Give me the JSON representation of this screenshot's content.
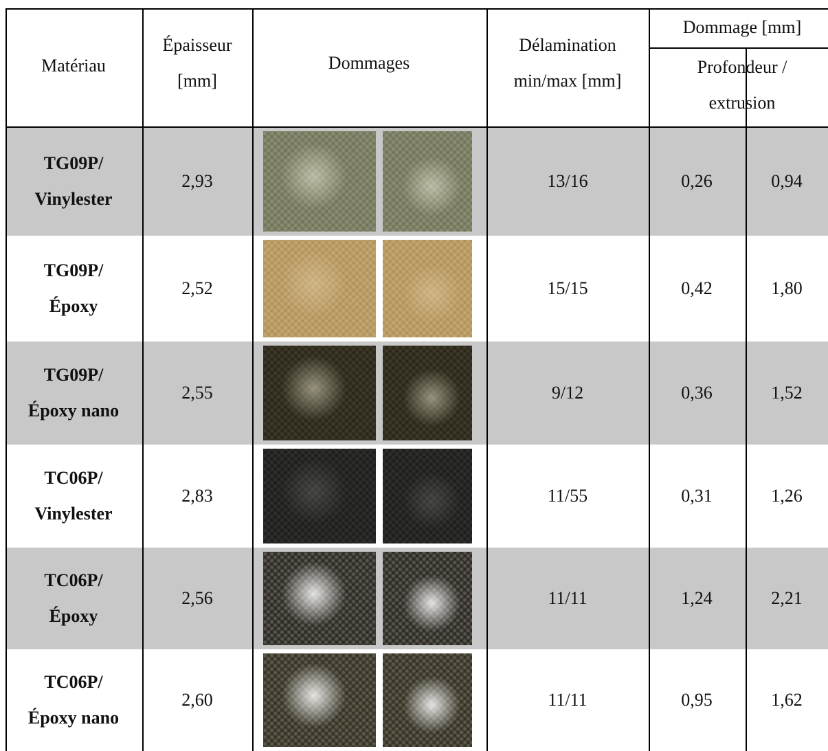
{
  "table": {
    "header": {
      "material": "Matériau",
      "thickness": [
        "Épaisseur",
        "[mm]"
      ],
      "damages": "Dommages",
      "delamination": [
        "Délamination",
        "min/max [mm]"
      ],
      "damage_mm": "Dommage [mm]",
      "depth_extrusion": [
        "Profondeur /",
        "extrusion"
      ]
    },
    "rows": [
      {
        "material": [
          "TG09P/",
          "Vinylester"
        ],
        "thickness": "2,93",
        "delamination": "13/16",
        "depth": "0,26",
        "extrusion": "0,94"
      },
      {
        "material": [
          "TG09P/",
          "Époxy"
        ],
        "thickness": "2,52",
        "delamination": "15/15",
        "depth": "0,42",
        "extrusion": "1,80"
      },
      {
        "material": [
          "TG09P/",
          "Époxy nano"
        ],
        "thickness": "2,55",
        "delamination": "9/12",
        "depth": "0,36",
        "extrusion": "1,52"
      },
      {
        "material": [
          "TC06P/",
          "Vinylester"
        ],
        "thickness": "2,83",
        "delamination": "11/55",
        "depth": "0,31",
        "extrusion": "1,26"
      },
      {
        "material": [
          "TC06P/",
          "Époxy"
        ],
        "thickness": "2,56",
        "delamination": "11/11",
        "depth": "1,24",
        "extrusion": "2,21"
      },
      {
        "material": [
          "TC06P/",
          "Époxy nano"
        ],
        "thickness": "2,60",
        "delamination": "11/11",
        "depth": "0,95",
        "extrusion": "1,62"
      }
    ]
  }
}
